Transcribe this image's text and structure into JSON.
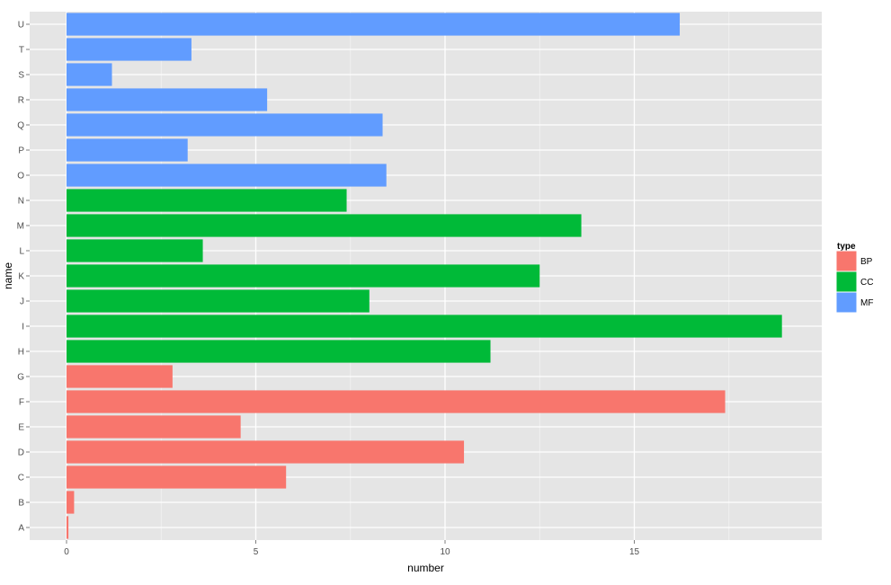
{
  "chart_data": {
    "type": "bar",
    "orientation": "horizontal",
    "xlabel": "number",
    "ylabel": "name",
    "xlim": [
      0,
      19.9
    ],
    "x_ticks": [
      0,
      5,
      10,
      15
    ],
    "x_tick_labels": [
      "0",
      "5",
      "10",
      "15"
    ],
    "grid": true,
    "legend": {
      "title": "type",
      "placement": "right",
      "items": [
        {
          "label": "BP",
          "color": "#F8766D"
        },
        {
          "label": "CC",
          "color": "#00BA38"
        },
        {
          "label": "MF",
          "color": "#619CFF"
        }
      ]
    },
    "categories": [
      "A",
      "B",
      "C",
      "D",
      "E",
      "F",
      "G",
      "H",
      "I",
      "J",
      "K",
      "L",
      "M",
      "N",
      "O",
      "P",
      "Q",
      "R",
      "S",
      "T",
      "U"
    ],
    "bars": [
      {
        "name": "A",
        "value": 0.05,
        "type": "BP"
      },
      {
        "name": "B",
        "value": 0.2,
        "type": "BP"
      },
      {
        "name": "C",
        "value": 5.8,
        "type": "BP"
      },
      {
        "name": "D",
        "value": 10.5,
        "type": "BP"
      },
      {
        "name": "E",
        "value": 4.6,
        "type": "BP"
      },
      {
        "name": "F",
        "value": 17.4,
        "type": "BP"
      },
      {
        "name": "G",
        "value": 2.8,
        "type": "BP"
      },
      {
        "name": "H",
        "value": 11.2,
        "type": "CC"
      },
      {
        "name": "I",
        "value": 18.9,
        "type": "CC"
      },
      {
        "name": "J",
        "value": 8.0,
        "type": "CC"
      },
      {
        "name": "K",
        "value": 12.5,
        "type": "CC"
      },
      {
        "name": "L",
        "value": 3.6,
        "type": "CC"
      },
      {
        "name": "M",
        "value": 13.6,
        "type": "CC"
      },
      {
        "name": "N",
        "value": 7.4,
        "type": "CC"
      },
      {
        "name": "O",
        "value": 8.45,
        "type": "MF"
      },
      {
        "name": "P",
        "value": 3.2,
        "type": "MF"
      },
      {
        "name": "Q",
        "value": 8.35,
        "type": "MF"
      },
      {
        "name": "R",
        "value": 5.3,
        "type": "MF"
      },
      {
        "name": "S",
        "value": 1.2,
        "type": "MF"
      },
      {
        "name": "T",
        "value": 3.3,
        "type": "MF"
      },
      {
        "name": "U",
        "value": 16.2,
        "type": "MF"
      }
    ],
    "colors": {
      "panel_background": "#E5E5E5",
      "grid_major": "#FFFFFF",
      "grid_minor": "#F2F2F2"
    }
  }
}
